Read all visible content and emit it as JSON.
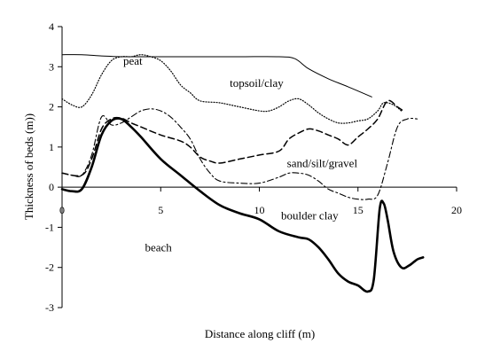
{
  "chart_data": {
    "type": "line",
    "title": "",
    "xlabel": "Distance along cliff (m)",
    "ylabel": "Thickness of beds (m))",
    "xlim": [
      0,
      20
    ],
    "ylim": [
      -3,
      4
    ],
    "xticks": [
      0,
      5,
      10,
      15,
      20
    ],
    "yticks": [
      -3,
      -2,
      -1,
      0,
      1,
      2,
      3,
      4
    ],
    "grid": false,
    "legend": "none",
    "annotations": [
      {
        "text": "peat",
        "x": 3.1,
        "y": 3.05
      },
      {
        "text": "topsoil/clay",
        "x": 8.5,
        "y": 2.5
      },
      {
        "text": "sand/silt/gravel",
        "x": 11.4,
        "y": 0.5
      },
      {
        "text": "boulder clay",
        "x": 11.1,
        "y": -0.8
      },
      {
        "text": "beach",
        "x": 4.2,
        "y": -1.6
      }
    ],
    "series": [
      {
        "style": "solid-thin",
        "x": [
          0,
          1,
          2,
          3,
          5,
          7,
          9,
          11,
          11.8,
          12.5,
          13.5,
          14.5,
          15.7
        ],
        "y": [
          3.3,
          3.3,
          3.27,
          3.25,
          3.25,
          3.25,
          3.25,
          3.25,
          3.2,
          2.95,
          2.7,
          2.5,
          2.25
        ]
      },
      {
        "style": "dotted",
        "x": [
          0,
          0.5,
          1,
          1.5,
          2,
          2.5,
          3,
          3.5,
          4,
          4.5,
          5,
          5.5,
          6,
          6.5,
          7,
          8,
          9,
          10,
          10.5,
          11,
          11.5,
          12,
          12.5,
          13,
          13.5,
          14,
          14.5,
          15,
          15.5,
          16,
          16.3,
          16.8,
          17.2
        ],
        "y": [
          2.2,
          2.05,
          2.0,
          2.3,
          2.8,
          3.15,
          3.25,
          3.25,
          3.3,
          3.25,
          3.15,
          2.9,
          2.55,
          2.35,
          2.15,
          2.1,
          2.0,
          1.9,
          1.9,
          2.0,
          2.15,
          2.2,
          2.05,
          1.85,
          1.7,
          1.6,
          1.6,
          1.65,
          1.7,
          1.9,
          2.1,
          2.05,
          1.9
        ]
      },
      {
        "style": "dashed",
        "x": [
          0,
          1,
          1.5,
          2,
          2.5,
          3,
          3.5,
          4,
          5,
          6,
          6.5,
          7,
          7.5,
          8,
          9,
          10,
          11,
          11.5,
          12,
          12.5,
          13,
          13.5,
          14,
          14.5,
          15,
          15.5,
          16,
          16.5,
          17,
          17.3
        ],
        "y": [
          0.35,
          0.3,
          0.7,
          1.45,
          1.7,
          1.72,
          1.6,
          1.5,
          1.3,
          1.15,
          1.0,
          0.75,
          0.65,
          0.6,
          0.7,
          0.8,
          0.9,
          1.2,
          1.35,
          1.45,
          1.4,
          1.3,
          1.2,
          1.05,
          1.25,
          1.45,
          1.7,
          2.15,
          2.0,
          1.9
        ]
      },
      {
        "style": "dash-dot",
        "x": [
          0,
          0.5,
          1,
          1.5,
          2,
          2.5,
          3,
          3.5,
          4,
          4.5,
          5,
          5.5,
          6,
          6.5,
          7,
          7.5,
          8,
          9,
          10,
          11,
          11.5,
          12,
          12.5,
          13,
          13.5,
          14,
          14.5,
          15,
          15.5,
          16,
          16.5,
          17,
          17.5,
          18
        ],
        "y": [
          0.35,
          0.3,
          0.3,
          0.8,
          1.75,
          1.55,
          1.6,
          1.75,
          1.9,
          1.95,
          1.9,
          1.75,
          1.5,
          1.2,
          0.7,
          0.35,
          0.15,
          0.1,
          0.1,
          0.25,
          0.35,
          0.35,
          0.3,
          0.15,
          -0.05,
          -0.15,
          -0.25,
          -0.3,
          -0.3,
          -0.2,
          0.6,
          1.5,
          1.7,
          1.7
        ]
      },
      {
        "style": "solid-thick",
        "x": [
          0,
          0.5,
          1,
          1.5,
          2,
          2.5,
          3,
          3.5,
          4,
          5,
          6,
          7,
          8,
          9,
          10,
          11,
          12,
          12.5,
          13,
          13.5,
          14,
          14.5,
          15,
          15.5,
          15.8,
          16.1,
          16.3,
          16.5,
          16.8,
          17.2,
          17.6,
          18,
          18.3
        ],
        "y": [
          -0.05,
          -0.1,
          -0.05,
          0.5,
          1.3,
          1.65,
          1.7,
          1.5,
          1.25,
          0.7,
          0.3,
          -0.1,
          -0.45,
          -0.65,
          -0.8,
          -1.1,
          -1.25,
          -1.3,
          -1.5,
          -1.8,
          -2.15,
          -2.35,
          -2.45,
          -2.6,
          -2.3,
          -0.55,
          -0.4,
          -0.8,
          -1.6,
          -2.0,
          -1.95,
          -1.8,
          -1.75
        ]
      }
    ]
  }
}
